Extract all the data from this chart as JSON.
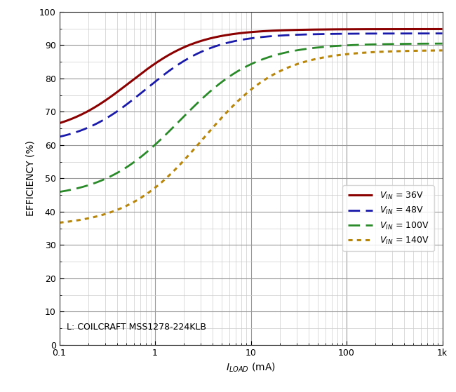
{
  "ylabel": "EFFICIENCY (%)",
  "xlim": [
    0.1,
    1000
  ],
  "ylim": [
    0,
    100
  ],
  "annotation": "L: COILCRAFT MSS1278-224KLB",
  "curves": [
    {
      "label_val": " = 36V",
      "color": "#8B0000",
      "linestyle": "solid",
      "linewidth": 2.2,
      "y_start": 63.0,
      "y_sat": 94.8,
      "knee": 0.55,
      "steepness": 2.8
    },
    {
      "label_val": " = 48V",
      "color": "#1a1aaa",
      "linestyle": "dashed",
      "linewidth": 2.0,
      "y_start": 60.0,
      "y_sat": 93.5,
      "knee": 0.8,
      "steepness": 2.8
    },
    {
      "label_val": " = 100V",
      "color": "#2a8a2a",
      "linestyle": "dashed",
      "linewidth": 2.0,
      "y_start": 44.0,
      "y_sat": 90.5,
      "knee": 1.8,
      "steepness": 2.5
    },
    {
      "label_val": " = 140V",
      "color": "#b8860b",
      "linestyle": "dotted",
      "linewidth": 2.2,
      "y_start": 35.5,
      "y_sat": 88.5,
      "knee": 3.2,
      "steepness": 2.5
    }
  ],
  "background_color": "#ffffff",
  "grid_major_color": "#999999",
  "grid_minor_color": "#cccccc",
  "border_color": "#cccccc",
  "x_major_ticks": [
    0.1,
    1,
    10,
    100,
    1000
  ],
  "x_major_labels": [
    "0.1",
    "1",
    "10",
    "100",
    "1k"
  ],
  "y_ticks": [
    0,
    10,
    20,
    30,
    40,
    50,
    60,
    70,
    80,
    90,
    100
  ],
  "legend_fontsize": 9,
  "axis_fontsize": 10,
  "tick_fontsize": 9,
  "annot_fontsize": 9
}
